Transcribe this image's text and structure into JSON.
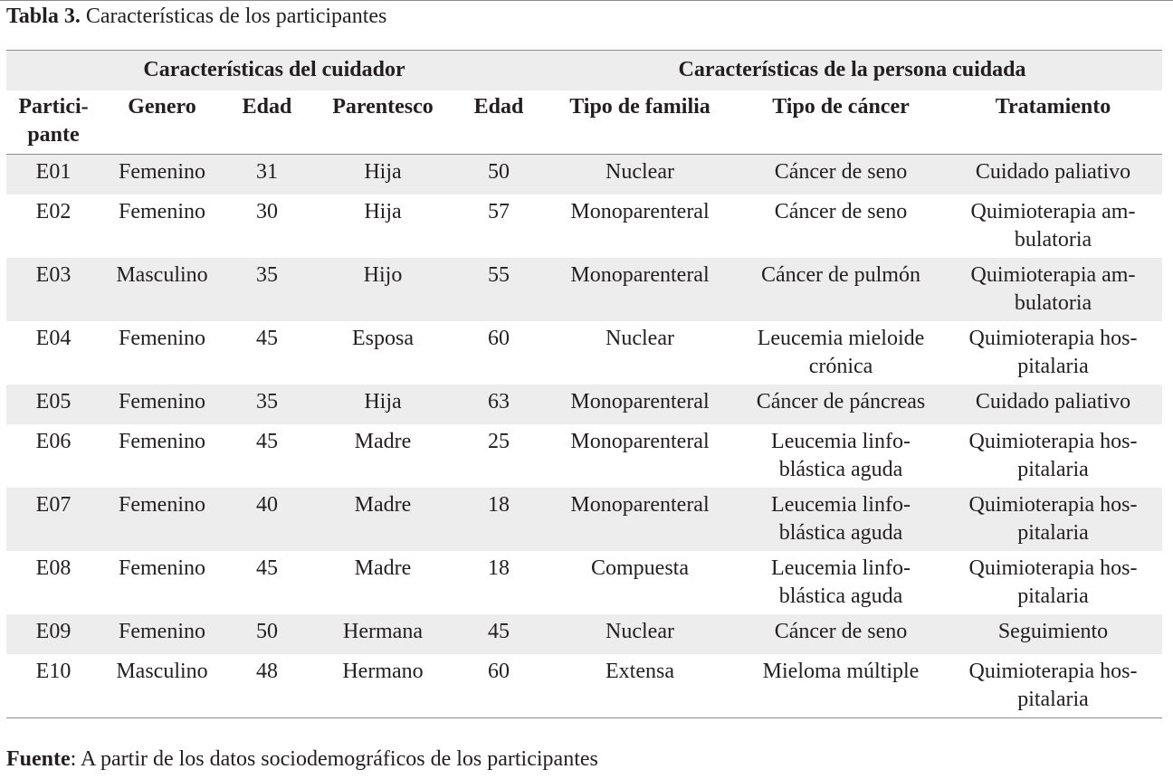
{
  "caption": {
    "label": "Tabla 3.",
    "text": "Características de los participantes"
  },
  "group_headers": [
    "Características del cuidador",
    "Características de la persona cuidada"
  ],
  "columns": [
    "Partici-\npante",
    "Genero",
    "Edad",
    "Parentesco",
    "Edad",
    "Tipo de familia",
    "Tipo de cáncer",
    "Tratamiento"
  ],
  "rows": [
    [
      "E01",
      "Femenino",
      "31",
      "Hija",
      "50",
      "Nuclear",
      "Cáncer de seno",
      "Cuidado paliativo"
    ],
    [
      "E02",
      "Femenino",
      "30",
      "Hija",
      "57",
      "Monoparenteral",
      "Cáncer de seno",
      "Quimioterapia am-\nbulatoria"
    ],
    [
      "E03",
      "Masculino",
      "35",
      "Hijo",
      "55",
      "Monoparenteral",
      "Cáncer de pulmón",
      "Quimioterapia am-\nbulatoria"
    ],
    [
      "E04",
      "Femenino",
      "45",
      "Esposa",
      "60",
      "Nuclear",
      "Leucemia mieloide\ncrónica",
      "Quimioterapia hos-\npitalaria"
    ],
    [
      "E05",
      "Femenino",
      "35",
      "Hija",
      "63",
      "Monoparenteral",
      "Cáncer de páncreas",
      "Cuidado paliativo"
    ],
    [
      "E06",
      "Femenino",
      "45",
      "Madre",
      "25",
      "Monoparenteral",
      "Leucemia linfo-\nblástica aguda",
      "Quimioterapia hos-\npitalaria"
    ],
    [
      "E07",
      "Femenino",
      "40",
      "Madre",
      "18",
      "Monoparenteral",
      "Leucemia linfo-\nblástica aguda",
      "Quimioterapia hos-\npitalaria"
    ],
    [
      "E08",
      "Femenino",
      "45",
      "Madre",
      "18",
      "Compuesta",
      "Leucemia linfo-\nblástica aguda",
      "Quimioterapia hos-\npitalaria"
    ],
    [
      "E09",
      "Femenino",
      "50",
      "Hermana",
      "45",
      "Nuclear",
      "Cáncer de seno",
      "Seguimiento"
    ],
    [
      "E10",
      "Masculino",
      "48",
      "Hermano",
      "60",
      "Extensa",
      "Mieloma múltiple",
      "Quimioterapia hos-\npitalaria"
    ]
  ],
  "source": {
    "label": "Fuente",
    "text": ": A partir de los datos sociodemográficos de los participantes"
  }
}
